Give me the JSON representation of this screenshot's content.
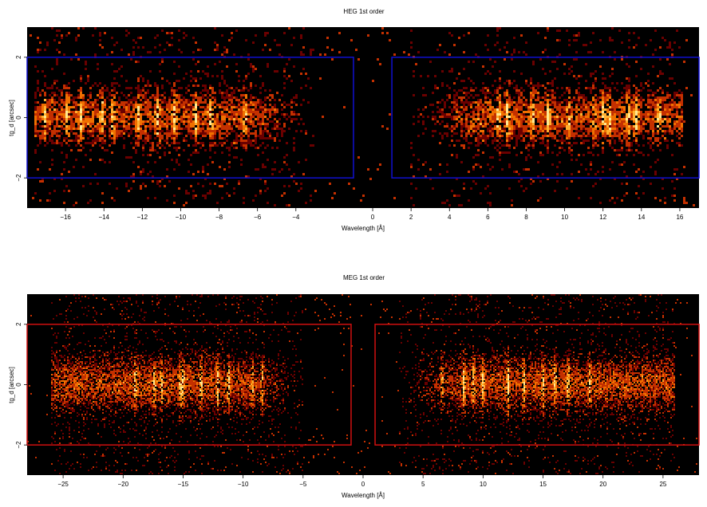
{
  "chart_data": [
    {
      "type": "heatmap",
      "title": "HEG 1st order",
      "xlabel": "Wavelength [Å]",
      "ylabel": "tg_d [arcsec]",
      "xlim": [
        -18.0,
        17.0
      ],
      "ylim": [
        -3.0,
        3.0
      ],
      "x_ticks": [
        -16,
        -14,
        -12,
        -10,
        -8,
        -6,
        -4,
        0,
        2,
        4,
        6,
        8,
        10,
        12,
        14,
        16
      ],
      "x_tick_labels": [
        "−16",
        "−14",
        "−12",
        "−10",
        "−8",
        "−6",
        "−4",
        "0",
        "2",
        "4",
        "6",
        "8",
        "10",
        "12",
        "14",
        "16"
      ],
      "y_ticks": [
        -2,
        0,
        2
      ],
      "y_tick_labels": [
        "−2",
        "0",
        "2"
      ],
      "extraction_regions": [
        {
          "x": [
            -18.0,
            -1.0
          ],
          "y": [
            -2.0,
            2.0
          ]
        },
        {
          "x": [
            1.0,
            17.0
          ],
          "y": [
            -2.0,
            2.0
          ]
        }
      ],
      "region_color": "#1010d0",
      "dispersed_ranges": [
        [
          -17.6,
          -3.0
        ],
        [
          2.0,
          16.2
        ]
      ],
      "bright_line_wavelengths": [
        -17.1,
        -15.9,
        -15.2,
        -14.1,
        -13.5,
        -12.2,
        -11.2,
        -10.3,
        -9.2,
        -8.4,
        -6.6,
        6.6,
        7.1,
        8.4,
        9.2,
        10.3,
        11.6,
        12.1,
        12.4,
        13.4,
        13.8,
        15.0
      ],
      "colormap": [
        "#000000",
        "#6a0000",
        "#c43000",
        "#f07000",
        "#ffb030",
        "#ffe890"
      ]
    },
    {
      "type": "heatmap",
      "title": "MEG 1st order",
      "xlabel": "Wavelength [Å]",
      "ylabel": "tg_d [arcsec]",
      "xlim": [
        -28.0,
        28.0
      ],
      "ylim": [
        -3.0,
        3.0
      ],
      "x_ticks": [
        -25,
        -20,
        -15,
        -10,
        -5,
        0,
        5,
        10,
        15,
        20,
        25
      ],
      "x_tick_labels": [
        "−25",
        "−20",
        "−15",
        "−10",
        "−5",
        "0",
        "5",
        "10",
        "15",
        "20",
        "25"
      ],
      "y_ticks": [
        -2,
        0,
        2
      ],
      "y_tick_labels": [
        "−2",
        "0",
        "2"
      ],
      "extraction_regions": [
        {
          "x": [
            -28.0,
            -1.0
          ],
          "y": [
            -2.0,
            2.0
          ]
        },
        {
          "x": [
            1.0,
            28.0
          ],
          "y": [
            -2.0,
            2.0
          ]
        }
      ],
      "region_color": "#d01010",
      "dispersed_ranges": [
        [
          -26.0,
          -5.0
        ],
        [
          3.0,
          26.0
        ]
      ],
      "bright_line_wavelengths": [
        -19.0,
        -17.4,
        -16.8,
        -15.2,
        -15.0,
        -13.5,
        -12.1,
        -11.2,
        -9.2,
        -8.4,
        6.6,
        8.4,
        9.2,
        10.0,
        12.1,
        13.4,
        15.0,
        16.0,
        17.1,
        18.9
      ],
      "colormap": [
        "#000000",
        "#6a0000",
        "#c43000",
        "#f07000",
        "#ffb030",
        "#ffe890"
      ]
    }
  ]
}
